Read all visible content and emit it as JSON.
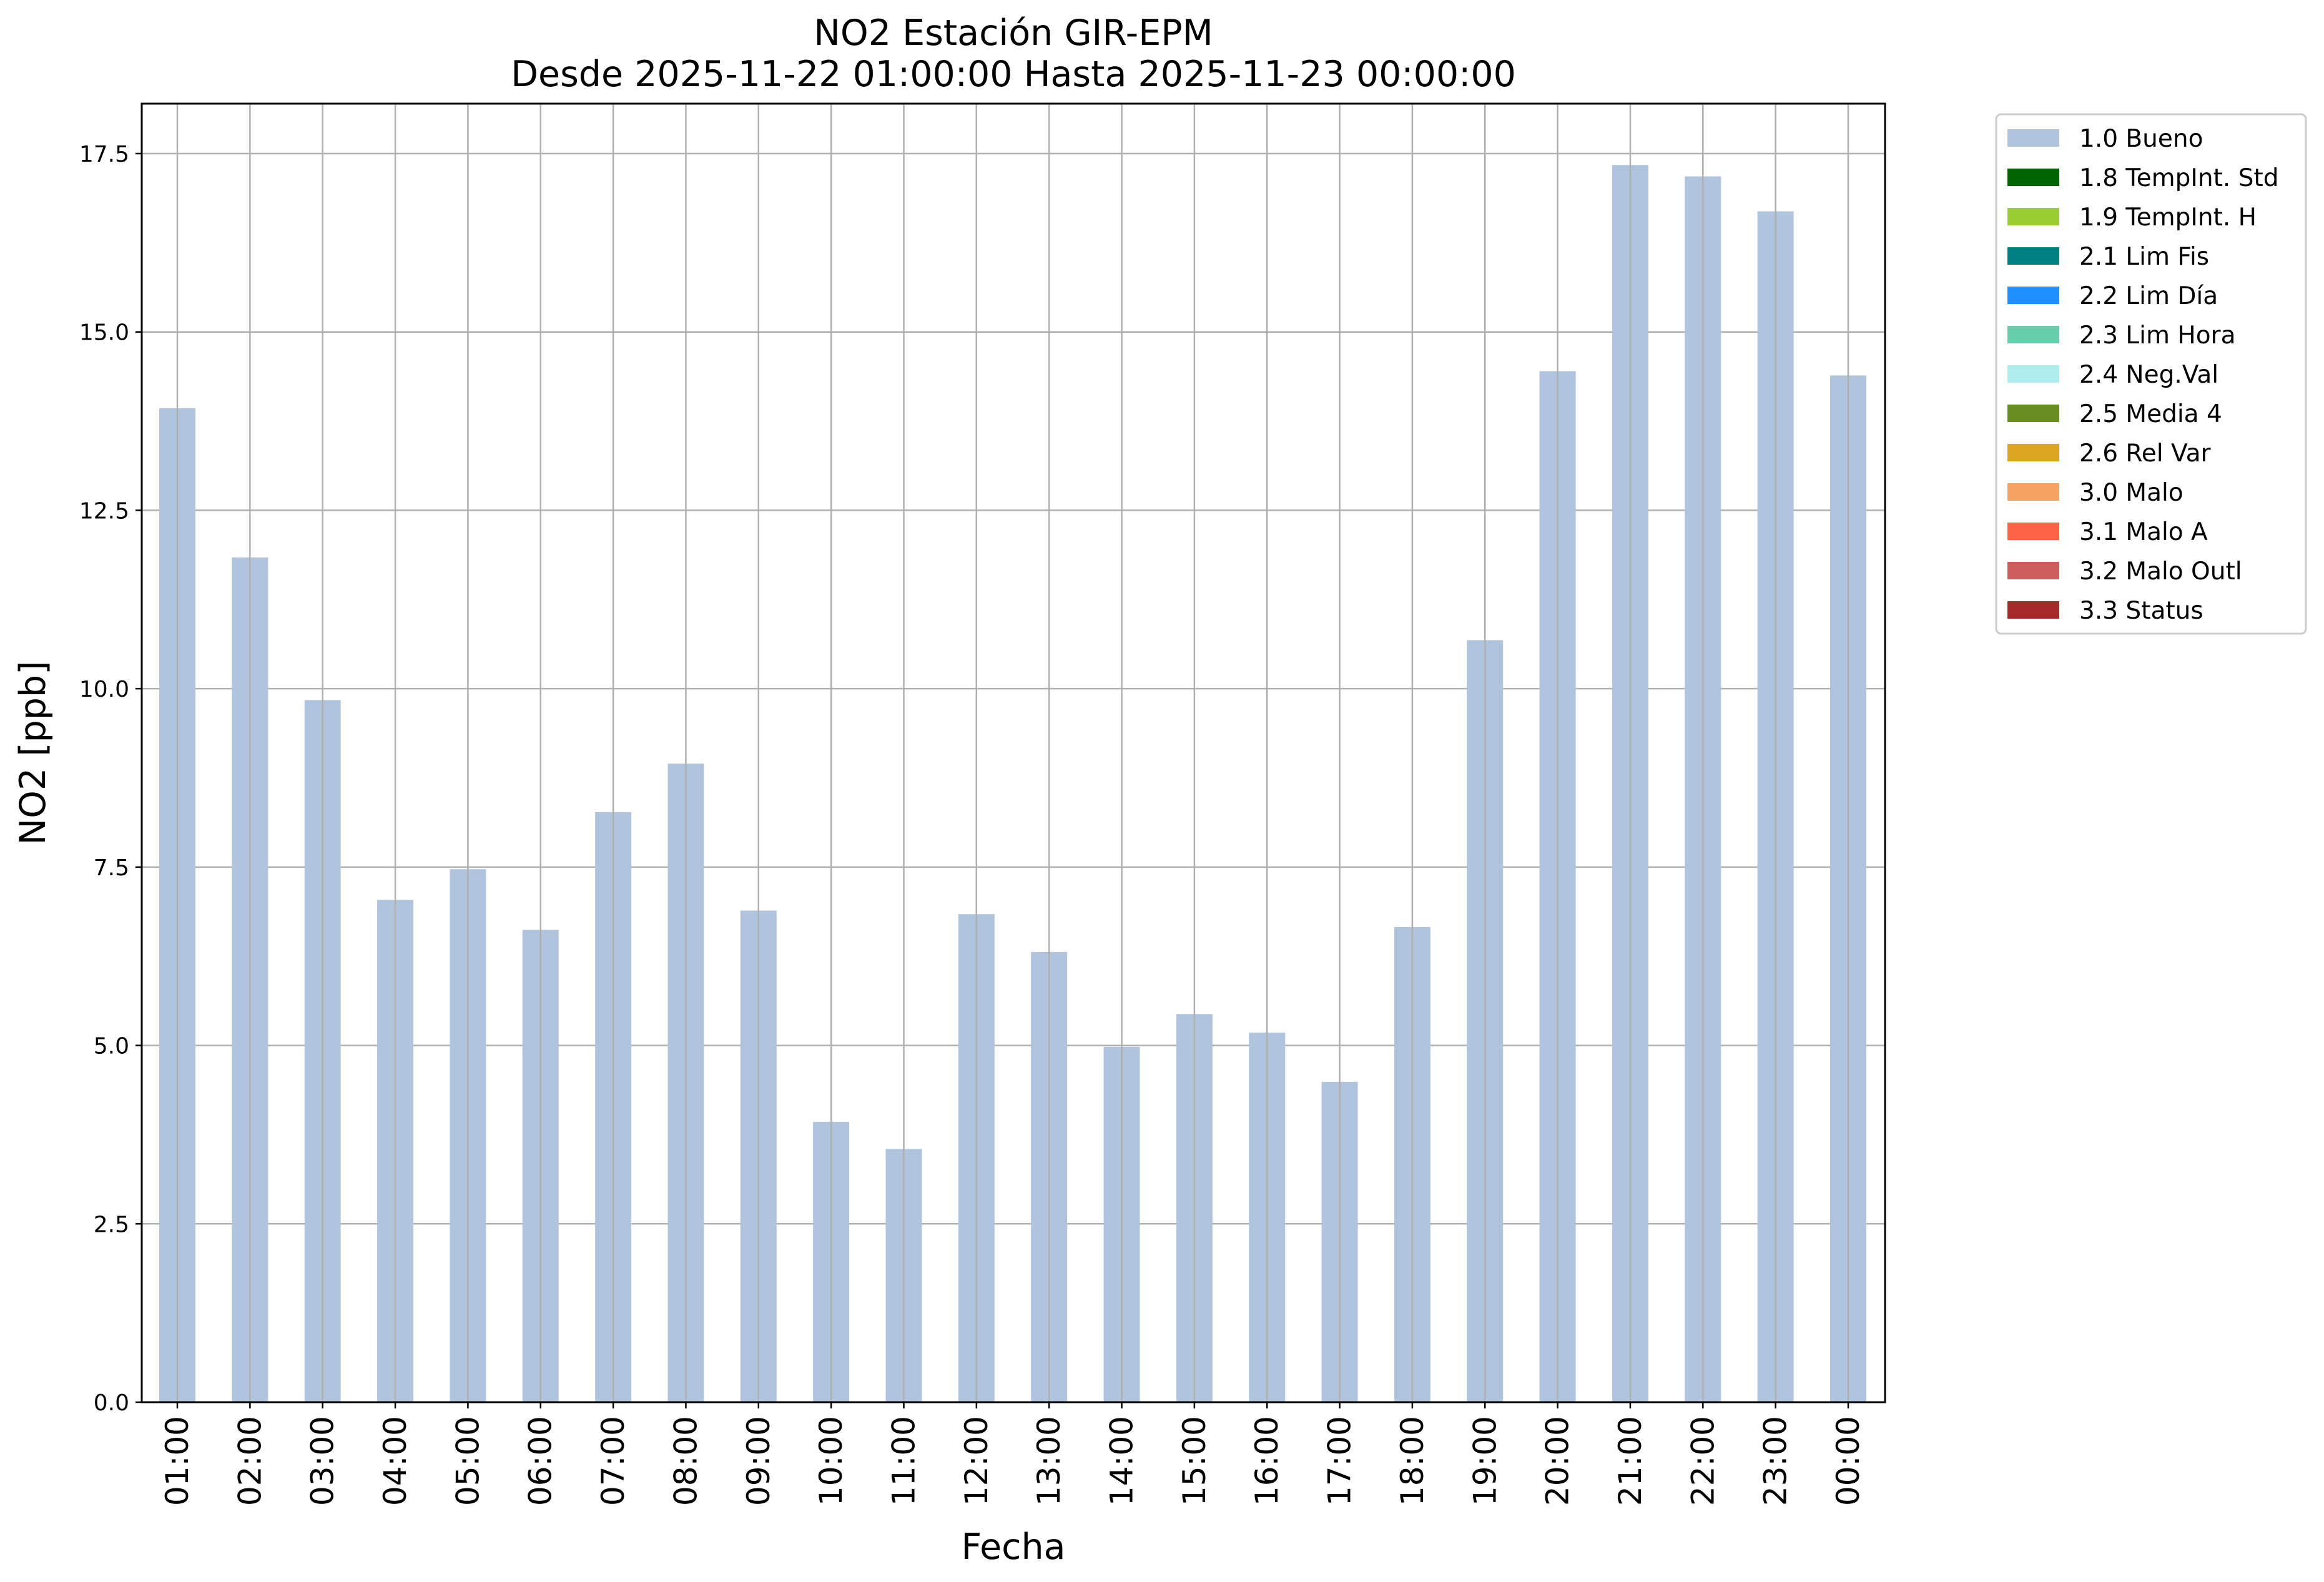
{
  "chart_data": {
    "type": "bar",
    "title": "NO2 Estación GIR-EPM",
    "subtitle": "Desde 2025-11-22 01:00:00 Hasta 2025-11-23 00:00:00",
    "xlabel": "Fecha",
    "ylabel": "NO2 [ppb]",
    "ylim": [
      0,
      18.2
    ],
    "yticks": [
      "0.0",
      "2.5",
      "5.0",
      "7.5",
      "10.0",
      "12.5",
      "15.0",
      "17.5"
    ],
    "grid": true,
    "legend_position": "outside-right",
    "categories": [
      "01:00",
      "02:00",
      "03:00",
      "04:00",
      "05:00",
      "06:00",
      "07:00",
      "08:00",
      "09:00",
      "10:00",
      "11:00",
      "12:00",
      "13:00",
      "14:00",
      "15:00",
      "16:00",
      "17:00",
      "18:00",
      "19:00",
      "20:00",
      "21:00",
      "22:00",
      "23:00",
      "00:00"
    ],
    "series": [
      {
        "name": "1.0 Bueno",
        "color": "#b0c4de",
        "values": [
          13.93,
          11.84,
          9.84,
          7.04,
          7.47,
          6.62,
          8.27,
          8.95,
          6.89,
          3.93,
          3.55,
          6.84,
          6.31,
          4.98,
          5.44,
          5.18,
          4.49,
          6.66,
          10.68,
          14.45,
          17.34,
          17.18,
          16.69,
          14.39
        ]
      }
    ],
    "legend": [
      {
        "label": "1.0 Bueno",
        "color": "#b0c4de"
      },
      {
        "label": "1.8 TempInt. Std",
        "color": "#006400"
      },
      {
        "label": "1.9 TempInt. H",
        "color": "#9acd32"
      },
      {
        "label": "2.1 Lim Fis",
        "color": "#008080"
      },
      {
        "label": "2.2 Lim Día",
        "color": "#1e90ff"
      },
      {
        "label": "2.3 Lim Hora",
        "color": "#66cdaa"
      },
      {
        "label": "2.4 Neg.Val",
        "color": "#afeeee"
      },
      {
        "label": "2.5 Media 4",
        "color": "#6b8e23"
      },
      {
        "label": "2.6 Rel Var",
        "color": "#daa520"
      },
      {
        "label": "3.0 Malo",
        "color": "#f4a460"
      },
      {
        "label": "3.1 Malo A",
        "color": "#ff6347"
      },
      {
        "label": "3.2 Malo Outl",
        "color": "#cd5c5c"
      },
      {
        "label": "3.3 Status",
        "color": "#a52a2a"
      }
    ]
  }
}
